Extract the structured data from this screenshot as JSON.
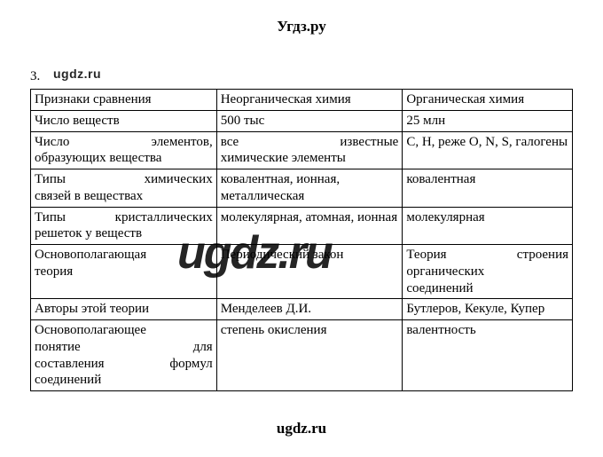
{
  "header": "Угдз.ру",
  "footer": "ugdz.ru",
  "watermark_small": "ugdz.ru",
  "watermark_large": "ugdz.ru",
  "question_number": "3.",
  "table": {
    "columns": [
      "Признаки сравнения",
      "Неорганическая химия",
      "Органическая химия"
    ],
    "rows": [
      {
        "c0": "Число веществ",
        "c1": "500 тыс",
        "c2": "25 млн"
      },
      {
        "c0_a": "Число элементов,",
        "c0_b": "образующих вещества",
        "c1_a": "все известные",
        "c1_b": "химические элементы",
        "c2": "C, H, реже O, N, S, галогены"
      },
      {
        "c0_a": "Типы химических",
        "c0_b": "связей в веществах",
        "c1": "ковалентная, ионная, металлическая",
        "c2": "ковалентная"
      },
      {
        "c0_a": "Типы кристаллических",
        "c0_b": "решеток у веществ",
        "c1": "молекулярная, атомная, ионная",
        "c2": "молекулярная"
      },
      {
        "c0_a": "Основополагающая",
        "c0_b": "теория",
        "c1": "Периодический закон",
        "c2_a": "Теория строения",
        "c2_b": "органических",
        "c2_c": "соединений"
      },
      {
        "c0": "Авторы этой теории",
        "c1": "Менделеев Д.И.",
        "c2": "Бутлеров, Кекуле, Купер"
      },
      {
        "c0_a": "Основополагающее",
        "c0_b": "понятие для",
        "c0_c": "составления формул",
        "c0_d": "соединений",
        "c1": "степень окисления",
        "c2": "валентность"
      }
    ]
  }
}
